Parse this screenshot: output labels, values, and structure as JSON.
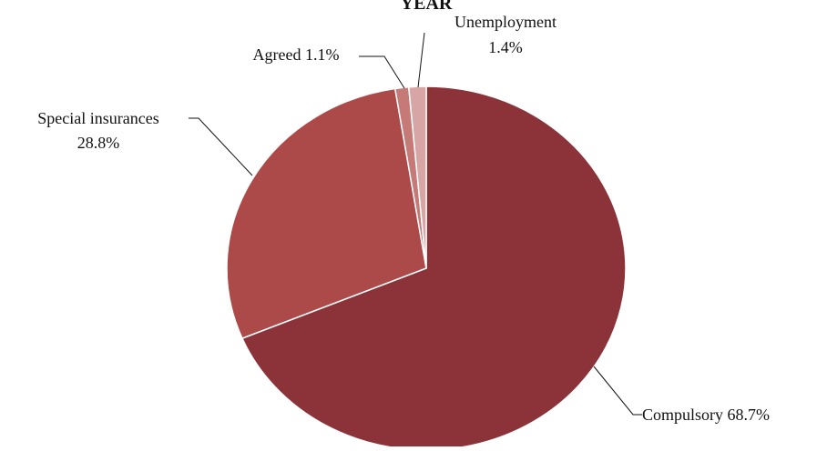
{
  "chart_data": {
    "type": "pie",
    "title": "YEAR",
    "start_angle_deg": 0,
    "direction": "clockwise",
    "slices": [
      {
        "key": "compulsory",
        "label": "Compulsory",
        "value": 68.7,
        "value_label": "68.7%",
        "color": "#8b3338"
      },
      {
        "key": "special",
        "label": "Special insurances",
        "value": 28.8,
        "value_label": "28.8%",
        "color": "#ac4a49"
      },
      {
        "key": "agreed",
        "label": "Agreed",
        "value": 1.1,
        "value_label": "1.1%",
        "color": "#c57a78"
      },
      {
        "key": "unemployment",
        "label": "Unemployment",
        "value": 1.4,
        "value_label": "1.4%",
        "color": "#d7a5a5"
      }
    ],
    "legend": "none",
    "data_labels": "outside with leader lines"
  }
}
